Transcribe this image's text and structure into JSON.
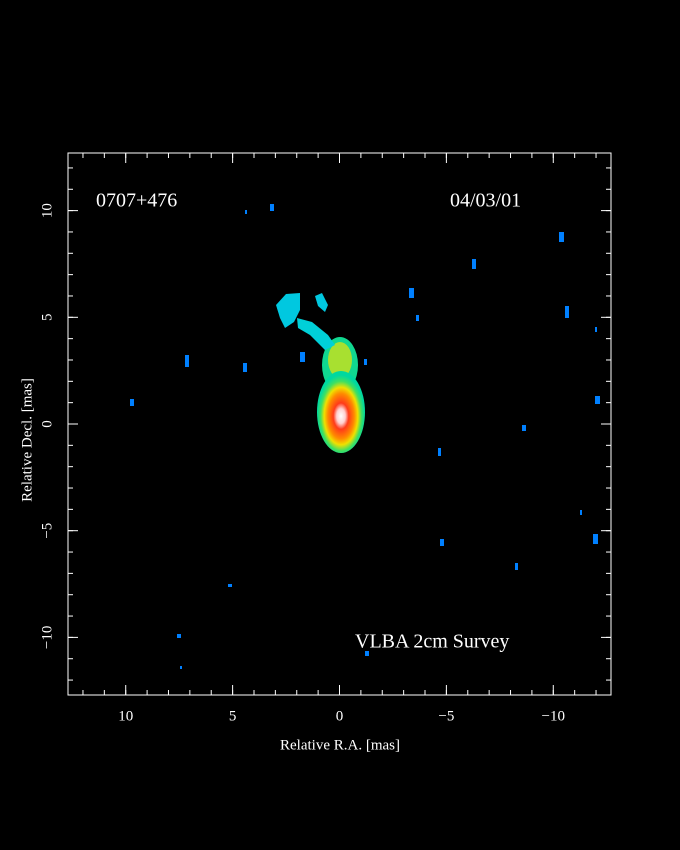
{
  "chart_data": {
    "type": "image",
    "source": "0707+476",
    "date": "04/03/01",
    "annotation": "VLBA 2cm Survey",
    "x_label": "Relative R.A. [mas]",
    "y_label": "Relative Decl. [mas]",
    "xlim": [
      12.7,
      -12.7
    ],
    "ylim": [
      -12.7,
      12.7
    ],
    "xticks": [
      10,
      5,
      0,
      {
        "value": -5,
        "label": "−5"
      },
      {
        "value": -10,
        "label": "−10"
      }
    ],
    "yticks": [
      {
        "value": -10,
        "label": "−10"
      },
      {
        "value": -5,
        "label": "−5"
      },
      0,
      5,
      10
    ],
    "xminorticks": [
      12,
      11,
      10,
      9,
      8,
      7,
      6,
      5,
      4,
      3,
      2,
      1,
      0,
      -1,
      -2,
      -3,
      -4,
      -5,
      -6,
      -7,
      -8,
      -9,
      -10,
      -11,
      -12
    ],
    "yminorticks": [
      -12,
      -11,
      -10,
      -9,
      -8,
      -7,
      -6,
      -5,
      -4,
      -3,
      -2,
      -1,
      0,
      1,
      2,
      3,
      4,
      5,
      6,
      7,
      8,
      9,
      10,
      11,
      12
    ]
  }
}
